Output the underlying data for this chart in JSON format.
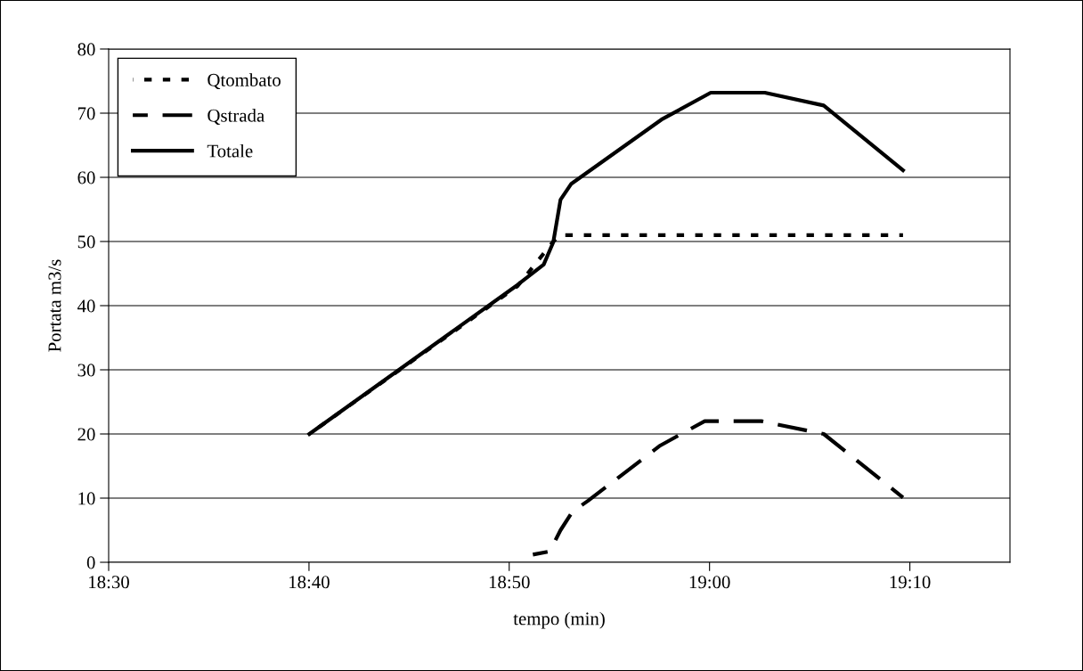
{
  "chart_data": {
    "type": "line",
    "xlabel": "tempo (min)",
    "ylabel": "Portata m3/s",
    "xlim": [
      18.5,
      19.25
    ],
    "xticks": [
      {
        "value": 18.5,
        "label": "18:30"
      },
      {
        "value": 18.6667,
        "label": "18:40"
      },
      {
        "value": 18.8333,
        "label": "18:50"
      },
      {
        "value": 19.0,
        "label": "19:00"
      },
      {
        "value": 19.1667,
        "label": "19:10"
      }
    ],
    "ylim": [
      0,
      80
    ],
    "yticks": [
      0,
      10,
      20,
      30,
      40,
      50,
      60,
      70,
      80
    ],
    "grid": "y",
    "legend": "top left",
    "series": [
      {
        "name": "Qtombato",
        "color": "#000000",
        "line_style": "dotted",
        "x": [
          18.667,
          18.84,
          18.87,
          18.876,
          19.161
        ],
        "values": [
          20,
          43,
          50,
          51,
          51
        ]
      },
      {
        "name": "Qstrada",
        "color": "#000000",
        "line_style": "dashed",
        "x": [
          18.853,
          18.867,
          18.876,
          18.886,
          18.899,
          18.959,
          18.996,
          19.043,
          19.095,
          19.161
        ],
        "values": [
          1.2,
          1.7,
          5,
          7.9,
          9.6,
          18.2,
          22,
          22,
          20,
          10.1
        ]
      },
      {
        "name": "Totale",
        "color": "#000000",
        "line_style": "solid",
        "x": [
          18.667,
          18.84,
          18.862,
          18.87,
          18.876,
          18.885,
          18.96,
          19.001,
          19.046,
          19.095,
          19.161
        ],
        "values": [
          20,
          43.2,
          46.4,
          49.9,
          56.5,
          59,
          69,
          73.2,
          73.2,
          71.2,
          61.1
        ]
      }
    ]
  }
}
